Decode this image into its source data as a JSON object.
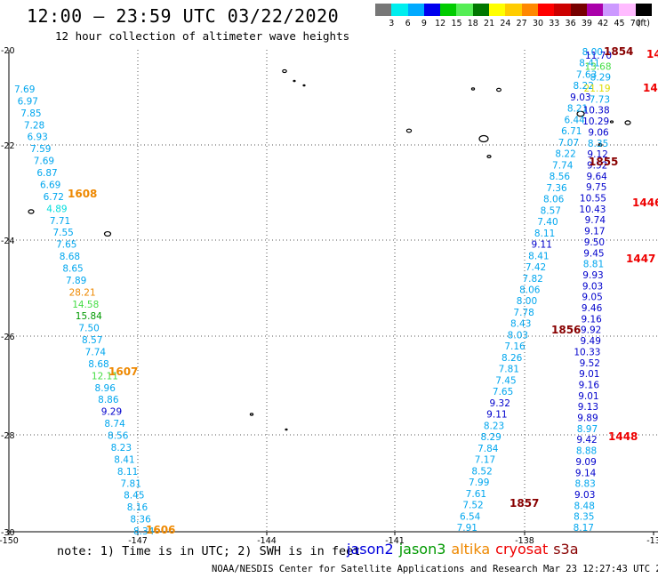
{
  "title": "12:00 – 23:59 UTC 03/22/2020",
  "subtitle": "12 hour collection of altimeter wave heights",
  "colorbar": {
    "colors": [
      "#777777",
      "#00eeee",
      "#00aaff",
      "#0000ee",
      "#00cc00",
      "#55ee55",
      "#007700",
      "#ffff00",
      "#ffcc00",
      "#ff8800",
      "#ff0000",
      "#cc0000",
      "#770000",
      "#aa00aa",
      "#cc99ff",
      "#ffbbff",
      "#000000"
    ],
    "labels": [
      "3",
      "6",
      "9",
      "12",
      "15",
      "18",
      "21",
      "24",
      "27",
      "30",
      "33",
      "36",
      "39",
      "42",
      "45",
      "70",
      "(ft)"
    ]
  },
  "axes": {
    "x_ticks": [
      "-150",
      "-147",
      "-144",
      "-141",
      "-138",
      "-13"
    ],
    "y_ticks": [
      "-20",
      "-22",
      "-24",
      "-26",
      "-28",
      "-30"
    ]
  },
  "times": [
    {
      "label": "1608",
      "color": "#ee8800"
    },
    {
      "label": "1607",
      "color": "#ee8800"
    },
    {
      "label": "1606",
      "color": "#ee8800"
    },
    {
      "label": "1854",
      "color": "#880000"
    },
    {
      "label": "1855",
      "color": "#880000"
    },
    {
      "label": "1856",
      "color": "#880000"
    },
    {
      "label": "1857",
      "color": "#880000"
    },
    {
      "label": "14",
      "color": "#ee0000"
    },
    {
      "label": "14",
      "color": "#ee0000"
    },
    {
      "label": "1446",
      "color": "#ee0000"
    },
    {
      "label": "1447",
      "color": "#ee0000"
    },
    {
      "label": "1448",
      "color": "#ee0000"
    }
  ],
  "tracks": {
    "left": [
      "7.69",
      "6.97",
      "7.85",
      "7.28",
      "6.93",
      "7.59",
      "7.69",
      "6.87",
      "6.69",
      "6.72",
      "4.89",
      "7.71",
      "7.55",
      "7.65",
      "8.68",
      "8.65",
      "7.89",
      "28.21",
      "14.58",
      "15.84",
      "7.50",
      "8.57",
      "7.74",
      "8.68",
      "12.11",
      "8.96",
      "8.86",
      "9.29",
      "8.74",
      "8.56",
      "8.23",
      "8.41",
      "8.11",
      "7.81",
      "8.45",
      "8.16",
      "8.36",
      "8.34"
    ],
    "mid": [
      "8.00",
      "8.41",
      "7.63",
      "8.22",
      "9.03",
      "8.21",
      "6.44",
      "6.71",
      "7.07",
      "8.22",
      "7.74",
      "8.56",
      "7.36",
      "8.06",
      "8.57",
      "7.40",
      "8.11",
      "9.11",
      "8.41",
      "7.42",
      "7.82",
      "8.06",
      "8.00",
      "7.78",
      "8.43",
      "8.03",
      "7.16",
      "8.26",
      "7.81",
      "7.45",
      "7.65",
      "9.32",
      "9.11",
      "8.23",
      "8.29",
      "7.84",
      "7.17",
      "8.52",
      "7.99",
      "7.61",
      "7.52",
      "6.54",
      "7.91"
    ],
    "right": [
      "11.70",
      "13.68",
      "8.29",
      "21.19",
      "7.73",
      "10.38",
      "10.29",
      "9.06",
      "8.35",
      "9.12",
      "9.52",
      "9.64",
      "9.75",
      "10.55",
      "10.43",
      "9.74",
      "9.17",
      "9.50",
      "9.45",
      "8.81",
      "9.93",
      "9.03",
      "9.05",
      "9.46",
      "9.16",
      "9.92",
      "9.49",
      "10.33",
      "9.52",
      "9.01",
      "9.16",
      "9.01",
      "9.13",
      "9.89",
      "8.97",
      "9.42",
      "8.88",
      "9.09",
      "9.14",
      "8.83",
      "9.03",
      "8.48",
      "8.35",
      "8.17"
    ]
  },
  "note": "note: 1) Time is in UTC; 2) SWH is in feet",
  "legend": [
    {
      "label": "jason2",
      "color": "#0000dd"
    },
    {
      "label": "jason3",
      "color": "#009900"
    },
    {
      "label": "altika",
      "color": "#ee8800"
    },
    {
      "label": "cryosat",
      "color": "#ee0000"
    },
    {
      "label": "s3a",
      "color": "#880000"
    }
  ],
  "footer": "NOAA/NESDIS Center for Satellite Applications and Research   Mar 23 12:27:43 UTC 2020"
}
